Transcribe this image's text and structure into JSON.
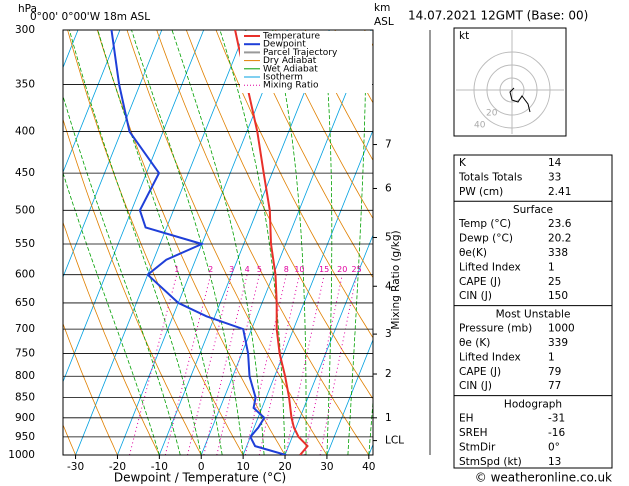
{
  "header": {
    "pressure_unit": "hPa",
    "location": "0°00' 0°00'W 18m ASL",
    "km_unit": "km",
    "km_sub": "ASL",
    "date": "14.07.2021 12GMT (Base: 00)"
  },
  "chart_data": {
    "type": "skewt",
    "x_label": "Dewpoint / Temperature (°C)",
    "y2_label": "Mixing Ratio (g/kg)",
    "xlim": [
      -33,
      41
    ],
    "xticks": [
      -30,
      -20,
      -10,
      0,
      10,
      20,
      30,
      40
    ],
    "ylim": [
      1000,
      300
    ],
    "y_scale": "log",
    "yticks": [
      300,
      350,
      400,
      450,
      500,
      550,
      600,
      650,
      700,
      750,
      800,
      850,
      900,
      950,
      1000
    ],
    "km_ticks": [
      {
        "value": 415,
        "label": "7"
      },
      {
        "value": 470,
        "label": "6"
      },
      {
        "value": 540,
        "label": "5"
      },
      {
        "value": 620,
        "label": "4"
      },
      {
        "value": 710,
        "label": "3"
      },
      {
        "value": 795,
        "label": "2"
      },
      {
        "value": 900,
        "label": "1"
      },
      {
        "value": 960,
        "label": "LCL"
      }
    ],
    "mixing_ratio_labels": [
      1,
      2,
      3,
      4,
      5,
      8,
      10,
      15,
      20,
      25
    ],
    "series": [
      {
        "name": "Temperature",
        "color": "#e8302a",
        "pressure": [
          1000,
          975,
          950,
          925,
          900,
          850,
          800,
          750,
          700,
          650,
          600,
          550,
          500,
          450,
          400,
          350,
          300
        ],
        "values": [
          23.6,
          24.5,
          21.5,
          19.5,
          18,
          15.5,
          12.5,
          9,
          6,
          3.5,
          0.5,
          -3.5,
          -7,
          -12,
          -17.5,
          -24.5,
          -32.5
        ]
      },
      {
        "name": "Dewpoint",
        "color": "#1f3fd8",
        "pressure": [
          1000,
          975,
          950,
          925,
          900,
          875,
          850,
          800,
          750,
          700,
          675,
          650,
          600,
          575,
          550,
          525,
          500,
          450,
          400,
          350,
          300
        ],
        "values": [
          20.2,
          12,
          10,
          11,
          11.5,
          8,
          7.5,
          4,
          1.5,
          -2,
          -12,
          -20,
          -30,
          -27,
          -20,
          -35,
          -38,
          -37,
          -48,
          -55,
          -62
        ]
      }
    ],
    "legend_extra": [
      {
        "name": "Parcel Trajectory",
        "color": "#999999"
      },
      {
        "name": "Dry Adiabat",
        "color": "#e08000"
      },
      {
        "name": "Wet Adiabat",
        "color": "#00a000"
      },
      {
        "name": "Isotherm",
        "color": "#00a0e0"
      },
      {
        "name": "Mixing Ratio",
        "color": "#e000a0"
      }
    ]
  },
  "hodograph": {
    "unit": "kt",
    "ring_labels": [
      "40",
      "20"
    ]
  },
  "indices": {
    "top": [
      [
        "K",
        "14"
      ],
      [
        "Totals Totals",
        "33"
      ],
      [
        "PW (cm)",
        "2.41"
      ]
    ],
    "sections": [
      {
        "title": "Surface",
        "rows": [
          [
            "Temp (°C)",
            "23.6"
          ],
          [
            "Dewp (°C)",
            "20.2"
          ],
          [
            "θe(K)",
            "338"
          ],
          [
            "Lifted Index",
            "1"
          ],
          [
            "CAPE (J)",
            "25"
          ],
          [
            "CIN (J)",
            "150"
          ]
        ]
      },
      {
        "title": "Most Unstable",
        "rows": [
          [
            "Pressure (mb)",
            "1000"
          ],
          [
            "θe (K)",
            "339"
          ],
          [
            "Lifted Index",
            "1"
          ],
          [
            "CAPE (J)",
            "79"
          ],
          [
            "CIN (J)",
            "77"
          ]
        ]
      },
      {
        "title": "Hodograph",
        "rows": [
          [
            "EH",
            "-31"
          ],
          [
            "SREH",
            "-16"
          ],
          [
            "StmDir",
            "0°"
          ],
          [
            "StmSpd (kt)",
            "13"
          ]
        ]
      }
    ]
  },
  "footer": "© weatheronline.co.uk"
}
